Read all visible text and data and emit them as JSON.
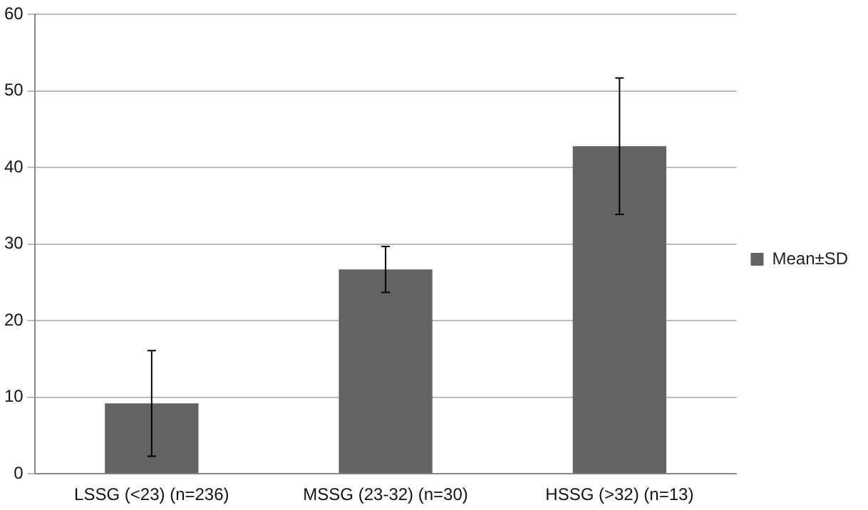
{
  "chart_data": {
    "type": "bar",
    "categories": [
      "LSSG (<23) (n=236)",
      "MSSG (23-32) (n=30)",
      "HSSG (>32) (n=13)"
    ],
    "series": [
      {
        "name": "Mean±SD",
        "color": "#636363",
        "values": [
          9.2,
          26.7,
          42.8
        ],
        "errors": [
          6.9,
          3,
          8.9
        ]
      }
    ],
    "ylim": [
      0,
      60
    ],
    "yticks": [
      0,
      10,
      20,
      30,
      40,
      50,
      60
    ],
    "grid": "y",
    "legend": "right"
  }
}
